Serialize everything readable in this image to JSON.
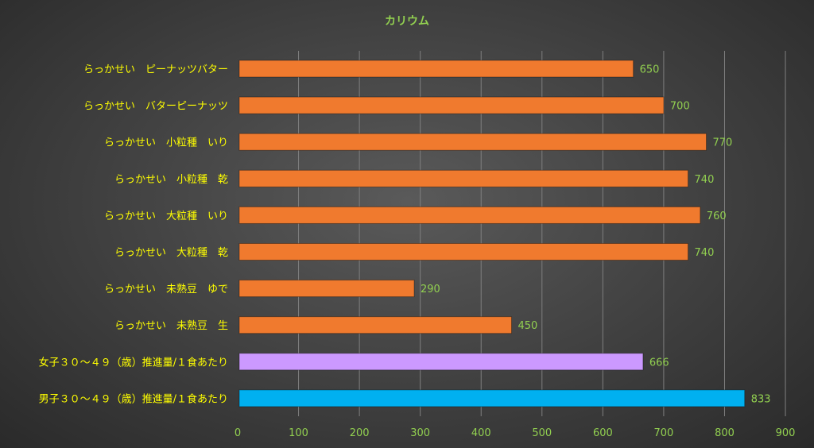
{
  "chart_data": {
    "type": "bar",
    "orientation": "horizontal",
    "title": "カリウム",
    "xlabel": "",
    "ylabel": "",
    "xlim": [
      0,
      900
    ],
    "xticks": [
      0,
      100,
      200,
      300,
      400,
      500,
      600,
      700,
      800,
      900
    ],
    "grid": "vertical",
    "legend": "none",
    "categories": [
      "らっかせい　ピーナッツバター",
      "らっかせい　バターピーナッツ",
      "らっかせい　小粒種　いり",
      "らっかせい　小粒種　乾",
      "らっかせい　大粒種　いり",
      "らっかせい　大粒種　乾",
      "らっかせい　未熟豆　ゆで",
      "らっかせい　未熟豆　生",
      "女子３０～４９（歳）推進量/１食あたり",
      "男子３０～４９（歳）推進量/１食あたり"
    ],
    "values": [
      650,
      700,
      770,
      740,
      760,
      740,
      290,
      450,
      666,
      833
    ],
    "bar_colors": [
      "#f07a2e",
      "#f07a2e",
      "#f07a2e",
      "#f07a2e",
      "#f07a2e",
      "#f07a2e",
      "#f07a2e",
      "#f07a2e",
      "#cc99ff",
      "#00b0f0"
    ],
    "colors": {
      "title": "#92d050",
      "category_label": "#ffff00",
      "tick_label": "#92d050",
      "data_label": "#92d050",
      "grid": "#7f7f7f"
    }
  }
}
